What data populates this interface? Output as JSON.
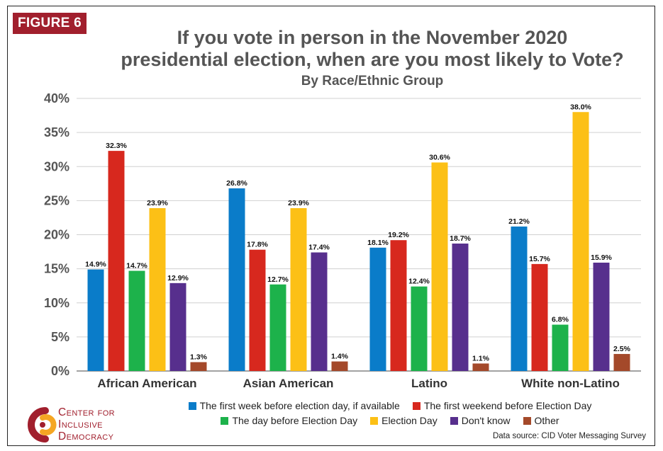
{
  "badge": "FIGURE 6",
  "chart_data": {
    "type": "bar",
    "title": "If you vote in person in the November 2020 presidential election, when are you most likely to Vote?",
    "title_lines": [
      "If you vote in person in the November 2020",
      "presidential election, when are you most likely to Vote?"
    ],
    "subtitle": "By Race/Ethnic Group",
    "xlabel": "",
    "ylabel": "",
    "ylim": [
      0,
      40
    ],
    "yticks": [
      "0%",
      "5%",
      "10%",
      "15%",
      "20%",
      "25%",
      "30%",
      "35%",
      "40%"
    ],
    "grid": true,
    "legend_position": "bottom",
    "categories": [
      "African American",
      "Asian American",
      "Latino",
      "White non-Latino"
    ],
    "series": [
      {
        "name": "The first week before election day, if available",
        "color": "#0a7cc9",
        "values": [
          14.9,
          26.8,
          18.1,
          21.2
        ],
        "labels": [
          "14.9%",
          "26.8%",
          "18.1%",
          "21.2%"
        ]
      },
      {
        "name": "The first weekend before Election Day",
        "color": "#d7281e",
        "values": [
          32.3,
          17.8,
          19.2,
          15.7
        ],
        "labels": [
          "32.3%",
          "17.8%",
          "19.2%",
          "15.7%"
        ]
      },
      {
        "name": "The day before Election Day",
        "color": "#1db24b",
        "values": [
          14.7,
          12.7,
          12.4,
          6.8
        ],
        "labels": [
          "14.7%",
          "12.7%",
          "12.4%",
          "6.8%"
        ]
      },
      {
        "name": "Election Day",
        "color": "#fcc016",
        "values": [
          23.9,
          23.9,
          30.6,
          38.0
        ],
        "labels": [
          "23.9%",
          "23.9%",
          "30.6%",
          "38.0%"
        ]
      },
      {
        "name": "Don't know",
        "color": "#572f8d",
        "values": [
          12.9,
          17.4,
          18.7,
          15.9
        ],
        "labels": [
          "12.9%",
          "17.4%",
          "18.7%",
          "15.9%"
        ]
      },
      {
        "name": "Other",
        "color": "#a4492a",
        "values": [
          1.3,
          1.4,
          1.1,
          2.5
        ],
        "labels": [
          "1.3%",
          "1.4%",
          "1.1%",
          "2.5%"
        ]
      }
    ]
  },
  "logo": {
    "line1": "Center for",
    "line2": "Inclusive",
    "line3": "Democracy",
    "color": "#a11f2d"
  },
  "source": "Data source: CID Voter Messaging Survey"
}
